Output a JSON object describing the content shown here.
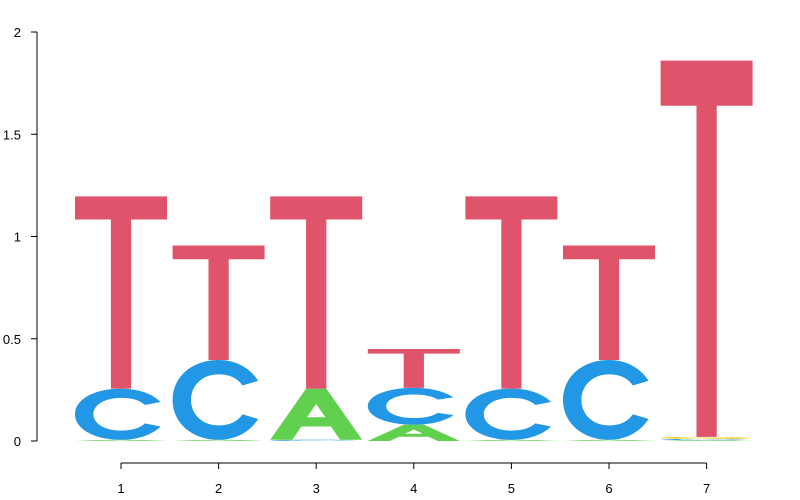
{
  "chart_data": {
    "type": "sequence-logo",
    "title": "",
    "xlabel": "",
    "ylabel": "",
    "ylim": [
      0,
      2
    ],
    "yticks": [
      {
        "value": 0,
        "label": "0"
      },
      {
        "value": 0.5,
        "label": "0.5"
      },
      {
        "value": 1,
        "label": "1"
      },
      {
        "value": 1.5,
        "label": "1.5"
      },
      {
        "value": 2,
        "label": "2"
      }
    ],
    "xticks": [
      "1",
      "2",
      "3",
      "4",
      "5",
      "6",
      "7"
    ],
    "colors": {
      "A": "#61d04f",
      "C": "#2297e6",
      "G": "#f5c710",
      "T": "#df536b"
    },
    "positions": [
      {
        "x": "1",
        "stack": [
          {
            "letter": "A",
            "height": 0.006
          },
          {
            "letter": "C",
            "height": 0.25
          },
          {
            "letter": "T",
            "height": 0.94
          }
        ]
      },
      {
        "x": "2",
        "stack": [
          {
            "letter": "A",
            "height": 0.006
          },
          {
            "letter": "C",
            "height": 0.39
          },
          {
            "letter": "T",
            "height": 0.56
          }
        ]
      },
      {
        "x": "3",
        "stack": [
          {
            "letter": "C",
            "height": 0.006
          },
          {
            "letter": "A",
            "height": 0.25
          },
          {
            "letter": "T",
            "height": 0.94
          }
        ]
      },
      {
        "x": "4",
        "stack": [
          {
            "letter": "A",
            "height": 0.08
          },
          {
            "letter": "C",
            "height": 0.18
          },
          {
            "letter": "T",
            "height": 0.19
          }
        ]
      },
      {
        "x": "5",
        "stack": [
          {
            "letter": "A",
            "height": 0.006
          },
          {
            "letter": "C",
            "height": 0.25
          },
          {
            "letter": "T",
            "height": 0.94
          }
        ]
      },
      {
        "x": "6",
        "stack": [
          {
            "letter": "A",
            "height": 0.006
          },
          {
            "letter": "C",
            "height": 0.39
          },
          {
            "letter": "T",
            "height": 0.56
          }
        ]
      },
      {
        "x": "7",
        "stack": [
          {
            "letter": "A",
            "height": 0.004
          },
          {
            "letter": "C",
            "height": 0.006
          },
          {
            "letter": "G",
            "height": 0.01
          },
          {
            "letter": "T",
            "height": 1.84
          }
        ]
      }
    ]
  }
}
